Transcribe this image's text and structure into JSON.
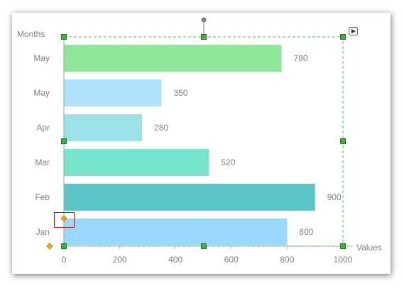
{
  "colors": {
    "axis": "#b3b3b3",
    "text": "#808080",
    "selection": "#5cb85c",
    "handle_fill": "#3fb23f",
    "handle_stroke": "#1f7a1f",
    "rotate_handle": "#808080",
    "control_point": "#ffa500",
    "focus_box": "#a31515"
  },
  "icons": {
    "play": "play-icon",
    "rotate": "rotate-handle-icon",
    "diamond": "diamond-control-point-icon"
  },
  "chart_data": {
    "type": "bar",
    "orientation": "horizontal",
    "title": "",
    "xlabel": "Values",
    "ylabel": "Months",
    "xlim": [
      0,
      1000
    ],
    "x_ticks": [
      "0",
      "200",
      "400",
      "600",
      "800",
      "1000"
    ],
    "grid": false,
    "categories": [
      "May",
      "May",
      "Apr",
      "Mar",
      "Feb",
      "Jan"
    ],
    "values": [
      780,
      350,
      280,
      520,
      900,
      800
    ],
    "value_labels": [
      "780",
      "350",
      "280",
      "520",
      "900",
      "800"
    ],
    "bar_colors": [
      "#8ee699",
      "#aee1fb",
      "#9ae3e6",
      "#77e5cd",
      "#5bc4c6",
      "#99d9fe"
    ]
  }
}
